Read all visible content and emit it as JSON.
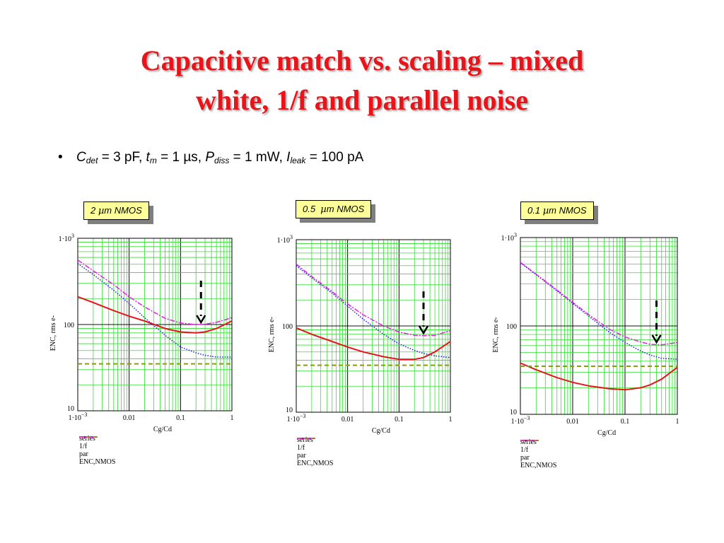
{
  "title_line1": "Capacitive match vs. scaling – mixed",
  "title_line2": "white, 1/f  and parallel noise",
  "bullet": {
    "symbol": "•",
    "cdet_sym": "C",
    "cdet_sub": "det",
    "cdet_val": " = 3 pF, ",
    "tm_sym": "t",
    "tm_sub": "m",
    "tm_val": " = 1 µs, ",
    "pdiss_sym": "P",
    "pdiss_sub": "diss",
    "pdiss_val": " = 1 mW, ",
    "ileak_sym": "I",
    "ileak_sub": "leak",
    "ileak_val": " = 100 pA"
  },
  "colors": {
    "series": "#e8141a",
    "flicker": "#1e1ee6",
    "par": "#8c9a10",
    "enc": "#e61ee6",
    "grid": "#33dd33"
  },
  "chart_data": [
    {
      "type": "line",
      "tag_pre": "2 ",
      "tag_mu": "µ",
      "tag_post": "m NMOS",
      "xlabel": "Cg/Cd",
      "ylabel": "ENC, rms e-",
      "x_scale": "log",
      "y_scale": "log",
      "xlim": [
        0.001,
        1
      ],
      "ylim": [
        10,
        1000
      ],
      "xticks": [
        {
          "t": "1·10",
          "e": "−3"
        },
        {
          "t": "0.01"
        },
        {
          "t": "0.1"
        },
        {
          "t": "1"
        }
      ],
      "yticks": [
        {
          "t": "1·10",
          "e": "3"
        },
        {
          "t": "100"
        },
        {
          "t": "10"
        }
      ],
      "grid": true,
      "x": [
        0.001,
        0.002,
        0.005,
        0.01,
        0.02,
        0.05,
        0.1,
        0.2,
        0.3,
        0.5,
        1
      ],
      "series": [
        {
          "name": "series",
          "style": "solid",
          "values": [
            210,
            180,
            145,
            125,
            110,
            90,
            82,
            80,
            82,
            90,
            110
          ]
        },
        {
          "name": "1/f",
          "style": "dotted",
          "values": [
            510,
            380,
            250,
            175,
            120,
            75,
            55,
            47,
            44,
            42,
            42
          ]
        },
        {
          "name": "par",
          "style": "dashed",
          "values": [
            35,
            35,
            35,
            35,
            35,
            35,
            35,
            35,
            35,
            35,
            35
          ]
        },
        {
          "name": "ENC,NMOS",
          "style": "dashdot",
          "values": [
            560,
            420,
            290,
            210,
            160,
            118,
            104,
            100,
            101,
            106,
            120
          ]
        }
      ],
      "arrow_x": 0.25,
      "arrow_y": 100
    },
    {
      "type": "line",
      "tag_pre": "0.5  ",
      "tag_mu": "µ",
      "tag_post": "m NMOS",
      "xlabel": "Cg/Cd",
      "ylabel": "ENC, rms e-",
      "x_scale": "log",
      "y_scale": "log",
      "xlim": [
        0.001,
        1
      ],
      "ylim": [
        10,
        1000
      ],
      "xticks": [
        {
          "t": "1·10",
          "e": "−3"
        },
        {
          "t": "0.01"
        },
        {
          "t": "0.1"
        },
        {
          "t": "1"
        }
      ],
      "yticks": [
        {
          "t": "1·10",
          "e": "3"
        },
        {
          "t": "100"
        },
        {
          "t": "10"
        }
      ],
      "grid": true,
      "x": [
        0.001,
        0.002,
        0.005,
        0.01,
        0.02,
        0.05,
        0.1,
        0.2,
        0.3,
        0.5,
        1
      ],
      "series": [
        {
          "name": "series",
          "style": "solid",
          "values": [
            95,
            80,
            66,
            57,
            50,
            44,
            41,
            41,
            43,
            50,
            66
          ]
        },
        {
          "name": "1/f",
          "style": "dotted",
          "values": [
            500,
            360,
            240,
            170,
            120,
            80,
            62,
            52,
            48,
            45,
            43
          ]
        },
        {
          "name": "par",
          "style": "dashed",
          "values": [
            35,
            35,
            35,
            35,
            35,
            35,
            35,
            35,
            35,
            35,
            35
          ]
        },
        {
          "name": "ENC,NMOS",
          "style": "dashdot",
          "values": [
            520,
            375,
            250,
            180,
            135,
            100,
            85,
            78,
            77,
            78,
            88
          ]
        }
      ],
      "arrow_x": 0.3,
      "arrow_y": 78
    },
    {
      "type": "line",
      "tag_pre": "0.1 ",
      "tag_mu": "µ",
      "tag_post": "m NMOS",
      "xlabel": "Cg/Cd",
      "ylabel": "ENC, rms e-",
      "x_scale": "log",
      "y_scale": "log",
      "xlim": [
        0.001,
        1
      ],
      "ylim": [
        10,
        1000
      ],
      "xticks": [
        {
          "t": "1·10",
          "e": "−3"
        },
        {
          "t": "0.01"
        },
        {
          "t": "0.1"
        },
        {
          "t": "1"
        }
      ],
      "yticks": [
        {
          "t": "1·10",
          "e": "3"
        },
        {
          "t": "100"
        },
        {
          "t": "10"
        }
      ],
      "grid": true,
      "x": [
        0.001,
        0.002,
        0.005,
        0.01,
        0.02,
        0.05,
        0.1,
        0.2,
        0.3,
        0.5,
        1
      ],
      "series": [
        {
          "name": "series",
          "style": "solid",
          "values": [
            38,
            32,
            26,
            23,
            21,
            19.5,
            19,
            20,
            21.5,
            25,
            34
          ]
        },
        {
          "name": "1/f",
          "style": "dotted",
          "values": [
            520,
            380,
            250,
            180,
            130,
            85,
            65,
            52,
            47,
            43,
            42
          ]
        },
        {
          "name": "par",
          "style": "dashed",
          "values": [
            35,
            35,
            35,
            35,
            35,
            35,
            35,
            35,
            35,
            35,
            35
          ]
        },
        {
          "name": "ENC,NMOS",
          "style": "dashdot",
          "values": [
            525,
            385,
            255,
            185,
            135,
            92,
            75,
            66,
            62,
            61,
            65
          ]
        }
      ],
      "arrow_x": 0.4,
      "arrow_y": 62
    }
  ]
}
